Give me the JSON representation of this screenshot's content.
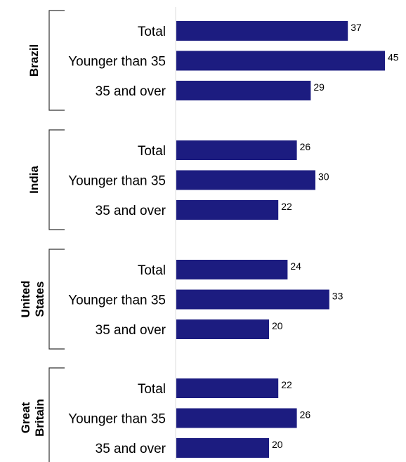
{
  "chart_data": {
    "type": "bar",
    "orientation": "horizontal",
    "bar_color": "#1c1c80",
    "groups": [
      {
        "name": "Brazil",
        "categories": [
          "Total",
          "Younger than 35",
          "35 and over"
        ],
        "values": [
          37,
          45,
          29
        ]
      },
      {
        "name": "India",
        "categories": [
          "Total",
          "Younger than 35",
          "35 and over"
        ],
        "values": [
          26,
          30,
          22
        ]
      },
      {
        "name": "United States",
        "name_lines": [
          "United",
          "States"
        ],
        "categories": [
          "Total",
          "Younger than 35",
          "35 and over"
        ],
        "values": [
          24,
          33,
          20
        ]
      },
      {
        "name": "Great Britain",
        "name_lines": [
          "Great",
          "Britain"
        ],
        "categories": [
          "Total",
          "Younger than 35",
          "35 and over"
        ],
        "values": [
          22,
          26,
          20
        ]
      }
    ],
    "xlim": [
      0,
      45
    ],
    "grid": false,
    "legend": "none"
  }
}
